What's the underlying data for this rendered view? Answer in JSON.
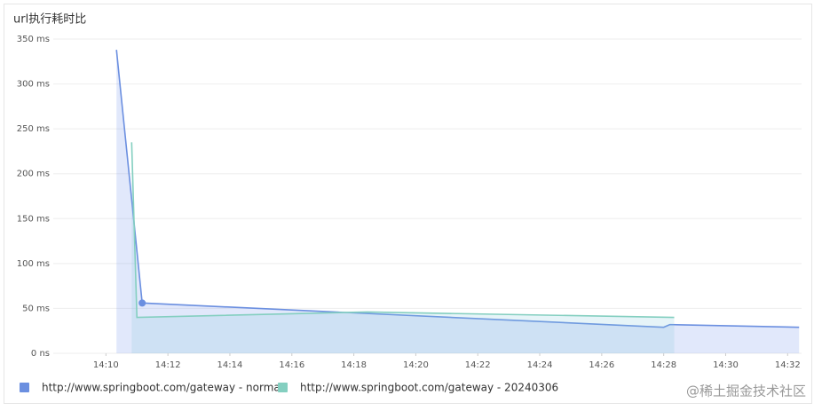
{
  "chart_data": {
    "type": "line",
    "title": "url执行耗时比",
    "xlim": [
      848.3,
      872.45
    ],
    "xticks": [
      {
        "value": 850,
        "label": "14:10"
      },
      {
        "value": 852,
        "label": "14:12"
      },
      {
        "value": 854,
        "label": "14:14"
      },
      {
        "value": 856,
        "label": "14:16"
      },
      {
        "value": 858,
        "label": "14:18"
      },
      {
        "value": 860,
        "label": "14:20"
      },
      {
        "value": 862,
        "label": "14:22"
      },
      {
        "value": 864,
        "label": "14:24"
      },
      {
        "value": 866,
        "label": "14:26"
      },
      {
        "value": 868,
        "label": "14:28"
      },
      {
        "value": 870,
        "label": "14:30"
      },
      {
        "value": 872,
        "label": "14:32"
      }
    ],
    "ylim": [
      0,
      350
    ],
    "yticks": [
      {
        "value": 0,
        "label": "0 ns"
      },
      {
        "value": 50,
        "label": "50 ms"
      },
      {
        "value": 100,
        "label": "100 ms"
      },
      {
        "value": 150,
        "label": "150 ms"
      },
      {
        "value": 200,
        "label": "200 ms"
      },
      {
        "value": 250,
        "label": "250 ms"
      },
      {
        "value": 300,
        "label": "300 ms"
      },
      {
        "value": 350,
        "label": "350 ms"
      }
    ],
    "grid": true,
    "legend": "bottom",
    "series": [
      {
        "name": "http://www.springboot.com/gateway - normal",
        "color": "#6b8fe0",
        "fill": "rgba(120,150,235,0.22)",
        "x": [
          850.34,
          851.17,
          868.0,
          868.2,
          872.37
        ],
        "values": [
          338,
          56,
          29,
          32,
          29
        ]
      },
      {
        "name": "http://www.springboot.com/gateway - 20240306",
        "color": "#84cfc0",
        "fill": "rgba(130,200,220,0.2)",
        "x": [
          850.83,
          851.0,
          858.43,
          868.34
        ],
        "values": [
          235,
          40,
          46,
          40
        ]
      }
    ],
    "watermark": "@稀土掘金技术社区"
  }
}
